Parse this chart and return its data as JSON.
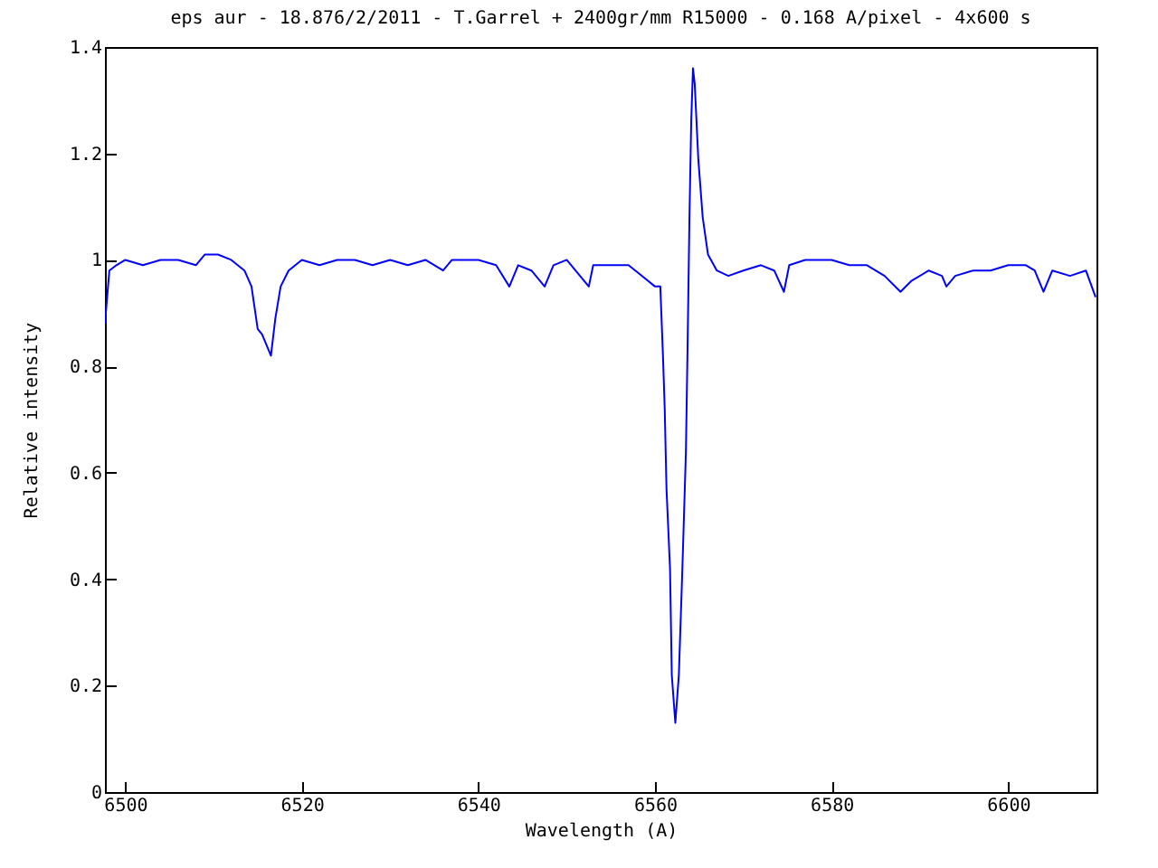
{
  "chart_data": {
    "type": "line",
    "title": "eps aur - 18.876/2/2011 - T.Garrel + 2400gr/mm R15000 - 0.168 A/pixel - 4x600 s",
    "xlabel": "Wavelength (A)",
    "ylabel": "Relative intensity",
    "xlim": [
      6497.7,
      6610
    ],
    "xticks": [
      6500,
      6520,
      6540,
      6560,
      6580,
      6600
    ],
    "ylim": [
      0,
      1.4
    ],
    "yticks": [
      0,
      0.2,
      0.4,
      0.6,
      0.8,
      1,
      1.2,
      1.4
    ],
    "grid": false,
    "marker": "none",
    "line_style": "solid",
    "x": [
      6497.7,
      6498.2,
      6499,
      6500,
      6502,
      6504,
      6506,
      6508,
      6509,
      6510.5,
      6512,
      6513.5,
      6514.3,
      6515,
      6515.5,
      6516,
      6516.5,
      6517,
      6517.6,
      6518.5,
      6520,
      6522,
      6524,
      6526,
      6528,
      6530,
      6532,
      6534,
      6536,
      6537,
      6540,
      6542,
      6543.5,
      6544.5,
      6546,
      6547.5,
      6548.5,
      6550,
      6552.5,
      6553,
      6555,
      6557,
      6558.5,
      6560,
      6560.6,
      6560.9,
      6561.1,
      6561.3,
      6561.7,
      6561.9,
      6562.3,
      6562.7,
      6563.1,
      6563.5,
      6563.7,
      6563.9,
      6564.1,
      6564.3,
      6564.5,
      6564.9,
      6565.4,
      6566,
      6567,
      6568.3,
      6570,
      6572,
      6573.5,
      6574.6,
      6575.2,
      6577,
      6580,
      6582,
      6584,
      6586,
      6587.8,
      6589,
      6591,
      6592.5,
      6593,
      6594,
      6596,
      6598,
      6600,
      6602,
      6603,
      6604,
      6605,
      6607,
      6608.8,
      6609.9
    ],
    "series": [
      {
        "color": "#0000ff",
        "values": [
          0.88,
          0.98,
          0.99,
          1.0,
          0.99,
          1.0,
          1.0,
          0.99,
          1.01,
          1.01,
          1.0,
          0.98,
          0.95,
          0.87,
          0.86,
          0.84,
          0.82,
          0.89,
          0.95,
          0.98,
          1.0,
          0.99,
          1.0,
          1.0,
          0.99,
          1.0,
          0.99,
          1.0,
          0.98,
          1.0,
          1.0,
          0.99,
          0.95,
          0.99,
          0.98,
          0.95,
          0.99,
          1.0,
          0.95,
          0.99,
          0.99,
          0.99,
          0.97,
          0.95,
          0.95,
          0.82,
          0.72,
          0.57,
          0.42,
          0.22,
          0.13,
          0.22,
          0.42,
          0.64,
          0.85,
          1.08,
          1.26,
          1.36,
          1.33,
          1.19,
          1.08,
          1.01,
          0.98,
          0.97,
          0.98,
          0.99,
          0.98,
          0.94,
          0.99,
          1.0,
          1.0,
          0.99,
          0.99,
          0.97,
          0.94,
          0.96,
          0.98,
          0.97,
          0.95,
          0.97,
          0.98,
          0.98,
          0.99,
          0.99,
          0.98,
          0.94,
          0.98,
          0.97,
          0.98,
          0.93
        ]
      }
    ]
  }
}
